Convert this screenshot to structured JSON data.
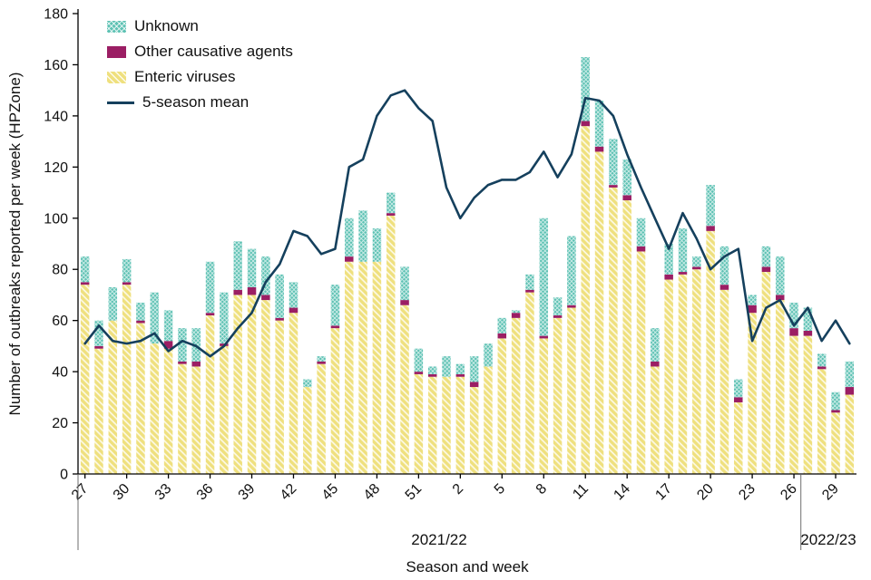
{
  "legend": {
    "items": [
      {
        "label": "Unknown"
      },
      {
        "label": "Other causative agents"
      },
      {
        "label": "Enteric viruses"
      },
      {
        "label": "5-season mean"
      }
    ]
  },
  "axes": {
    "y_label": "Number of outbreaks reported per week (HPZone)",
    "x_label": "Season and week",
    "y_ticks": [
      0,
      20,
      40,
      60,
      80,
      100,
      120,
      140,
      160,
      180
    ],
    "seasons": [
      {
        "label": "2021/22"
      },
      {
        "label": "2022/23"
      }
    ]
  },
  "chart_data": {
    "type": "bar",
    "subtype": "stacked-bars-with-line",
    "title": "",
    "xlabel": "Season and week",
    "ylabel": "Number of outbreaks reported per week (HPZone)",
    "ylim": [
      0,
      180
    ],
    "grid": false,
    "legend_position": "top-left-inside",
    "x_tick_every": 3,
    "categories": [
      "27",
      "28",
      "29",
      "30",
      "31",
      "32",
      "33",
      "34",
      "35",
      "36",
      "37",
      "38",
      "39",
      "40",
      "41",
      "42",
      "43",
      "44",
      "45",
      "46",
      "47",
      "48",
      "49",
      "50",
      "51",
      "52",
      "1",
      "2",
      "3",
      "4",
      "5",
      "6",
      "7",
      "8",
      "9",
      "10",
      "11",
      "12",
      "13",
      "14",
      "15",
      "16",
      "17",
      "18",
      "19",
      "20",
      "21",
      "22",
      "23",
      "24",
      "25",
      "26",
      "27",
      "28",
      "29",
      "30"
    ],
    "colors": {
      "enteric": "#efe07e",
      "other": "#9b1e64",
      "unknown": "#5ec2b4",
      "mean_line": "#15405d",
      "axis": "#000000",
      "separator": "#6e6e6e"
    },
    "series": [
      {
        "name": "Enteric viruses",
        "key": "enteric",
        "values": [
          74,
          49,
          60,
          74,
          59,
          51,
          49,
          43,
          42,
          62,
          50,
          70,
          70,
          68,
          60,
          63,
          34,
          43,
          57,
          83,
          83,
          83,
          101,
          66,
          39,
          38,
          38,
          38,
          34,
          42,
          53,
          61,
          71,
          53,
          61,
          65,
          136,
          126,
          112,
          107,
          87,
          42,
          76,
          78,
          80,
          95,
          72,
          28,
          63,
          79,
          68,
          54,
          54,
          41,
          24,
          31
        ]
      },
      {
        "name": "Other causative agents",
        "key": "other",
        "values": [
          1,
          1,
          0,
          1,
          1,
          0,
          3,
          1,
          2,
          1,
          1,
          2,
          3,
          2,
          1,
          2,
          0,
          1,
          1,
          2,
          0,
          0,
          1,
          2,
          1,
          1,
          0,
          1,
          2,
          0,
          2,
          2,
          1,
          1,
          1,
          1,
          2,
          2,
          1,
          2,
          2,
          2,
          2,
          1,
          1,
          2,
          2,
          2,
          3,
          2,
          2,
          3,
          2,
          1,
          1,
          3
        ]
      },
      {
        "name": "Unknown",
        "key": "unknown",
        "values": [
          10,
          10,
          13,
          9,
          7,
          20,
          12,
          13,
          13,
          20,
          20,
          19,
          15,
          15,
          17,
          10,
          3,
          2,
          16,
          15,
          20,
          13,
          8,
          13,
          9,
          3,
          8,
          4,
          10,
          9,
          6,
          1,
          6,
          46,
          7,
          27,
          25,
          18,
          18,
          14,
          11,
          13,
          12,
          17,
          4,
          16,
          15,
          7,
          4,
          8,
          15,
          10,
          9,
          5,
          7,
          10
        ]
      }
    ],
    "line_series": {
      "name": "5-season mean",
      "values": [
        51,
        58,
        52,
        51,
        52,
        55,
        48,
        52,
        50,
        46,
        50,
        57,
        63,
        75,
        82,
        95,
        93,
        86,
        88,
        120,
        123,
        140,
        148,
        150,
        143,
        138,
        112,
        100,
        108,
        113,
        115,
        115,
        118,
        126,
        116,
        125,
        147,
        146,
        140,
        125,
        112,
        100,
        88,
        102,
        92,
        80,
        85,
        88,
        52,
        65,
        68,
        58,
        65,
        52,
        60,
        51
      ]
    },
    "season_split_index": 52
  }
}
